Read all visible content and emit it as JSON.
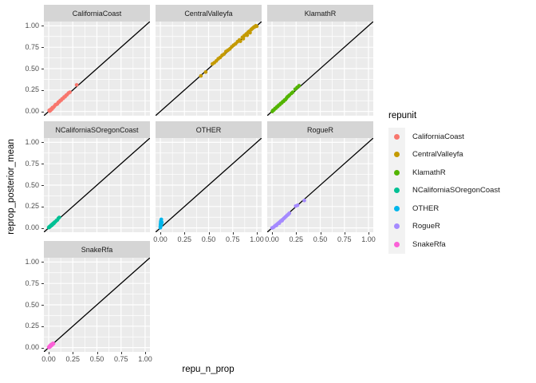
{
  "axis": {
    "x_title": "repu_n_prop",
    "y_title": "reprop_posterior_mean"
  },
  "legend": {
    "title": "repunit",
    "entries": [
      {
        "label": "CaliforniaCoast",
        "color": "#F8766D"
      },
      {
        "label": "CentralValleyfa",
        "color": "#C49A00"
      },
      {
        "label": "KlamathR",
        "color": "#53B400"
      },
      {
        "label": "NCaliforniaSOregonCoast",
        "color": "#00C094"
      },
      {
        "label": "OTHER",
        "color": "#00B6EB"
      },
      {
        "label": "RogueR",
        "color": "#A58AFF"
      },
      {
        "label": "SnakeRfa",
        "color": "#FB61D7"
      }
    ]
  },
  "theme": {
    "page_bg": "#FFFFFF",
    "panel_bg": "#EBEBEB",
    "strip_bg": "#D5D5D5",
    "grid_color": "#FFFFFF",
    "tick_text": "#4D4D4D",
    "tick_mark": "#333333",
    "ref_line": "#000000"
  },
  "chart_data": {
    "type": "scatter",
    "title": "",
    "xlabel": "repu_n_prop",
    "ylabel": "reprop_posterior_mean",
    "xlim": [
      -0.05,
      1.05
    ],
    "ylim": [
      -0.05,
      1.05
    ],
    "grid": true,
    "legend_position": "right",
    "facet_variable": "repunit",
    "reference_line": "y = x",
    "x_ticks": [
      0,
      0.25,
      0.5,
      0.75,
      1.0
    ],
    "y_ticks": [
      0,
      0.25,
      0.5,
      0.75,
      1.0
    ],
    "x_tick_labels": [
      "0.00",
      "0.25",
      "0.50",
      "0.75",
      "1.00"
    ],
    "y_tick_labels": [
      "0.00",
      "0.25",
      "0.50",
      "0.75",
      "1.00"
    ],
    "x_minor_ticks": [
      0.125,
      0.375,
      0.625,
      0.875
    ],
    "y_minor_ticks": [
      0.125,
      0.375,
      0.625,
      0.875
    ],
    "facets": [
      {
        "name": "CaliforniaCoast",
        "color": "#F8766D",
        "points": [
          [
            0.005,
            0.012
          ],
          [
            0.01,
            0.004
          ],
          [
            0.015,
            0.02
          ],
          [
            0.02,
            0.013
          ],
          [
            0.028,
            0.03
          ],
          [
            0.035,
            0.028
          ],
          [
            0.04,
            0.045
          ],
          [
            0.05,
            0.048
          ],
          [
            0.06,
            0.062
          ],
          [
            0.07,
            0.078
          ],
          [
            0.08,
            0.082
          ],
          [
            0.09,
            0.088
          ],
          [
            0.1,
            0.108
          ],
          [
            0.11,
            0.112
          ],
          [
            0.12,
            0.128
          ],
          [
            0.13,
            0.132
          ],
          [
            0.14,
            0.148
          ],
          [
            0.15,
            0.152
          ],
          [
            0.16,
            0.168
          ],
          [
            0.17,
            0.172
          ],
          [
            0.18,
            0.188
          ],
          [
            0.19,
            0.195
          ],
          [
            0.205,
            0.215
          ],
          [
            0.22,
            0.225
          ],
          [
            0.29,
            0.31
          ]
        ]
      },
      {
        "name": "CentralValleyfa",
        "color": "#C49A00",
        "points": [
          [
            0.42,
            0.415
          ],
          [
            0.47,
            0.46
          ],
          [
            0.54,
            0.555
          ],
          [
            0.56,
            0.57
          ],
          [
            0.58,
            0.59
          ],
          [
            0.6,
            0.615
          ],
          [
            0.62,
            0.63
          ],
          [
            0.64,
            0.655
          ],
          [
            0.66,
            0.67
          ],
          [
            0.68,
            0.7
          ],
          [
            0.7,
            0.715
          ],
          [
            0.72,
            0.73
          ],
          [
            0.74,
            0.755
          ],
          [
            0.76,
            0.775
          ],
          [
            0.78,
            0.79
          ],
          [
            0.8,
            0.815
          ],
          [
            0.82,
            0.835
          ],
          [
            0.83,
            0.82
          ],
          [
            0.85,
            0.865
          ],
          [
            0.86,
            0.85
          ],
          [
            0.87,
            0.885
          ],
          [
            0.89,
            0.905
          ],
          [
            0.9,
            0.89
          ],
          [
            0.91,
            0.925
          ],
          [
            0.92,
            0.935
          ],
          [
            0.93,
            0.92
          ],
          [
            0.94,
            0.955
          ],
          [
            0.95,
            0.965
          ],
          [
            0.96,
            0.975
          ],
          [
            0.97,
            0.985
          ],
          [
            0.98,
            0.99
          ],
          [
            0.99,
            1.0
          ],
          [
            1.0,
            0.995
          ]
        ]
      },
      {
        "name": "KlamathR",
        "color": "#53B400",
        "points": [
          [
            0.003,
            0.0
          ],
          [
            0.01,
            0.013
          ],
          [
            0.02,
            0.018
          ],
          [
            0.03,
            0.033
          ],
          [
            0.04,
            0.038
          ],
          [
            0.05,
            0.053
          ],
          [
            0.06,
            0.058
          ],
          [
            0.07,
            0.073
          ],
          [
            0.08,
            0.078
          ],
          [
            0.09,
            0.093
          ],
          [
            0.1,
            0.098
          ],
          [
            0.11,
            0.113
          ],
          [
            0.12,
            0.118
          ],
          [
            0.13,
            0.133
          ],
          [
            0.14,
            0.138
          ],
          [
            0.15,
            0.155
          ],
          [
            0.16,
            0.17
          ],
          [
            0.17,
            0.178
          ],
          [
            0.18,
            0.19
          ],
          [
            0.2,
            0.21
          ],
          [
            0.215,
            0.225
          ],
          [
            0.24,
            0.26
          ],
          [
            0.26,
            0.28
          ],
          [
            0.28,
            0.3
          ]
        ]
      },
      {
        "name": "NCaliforniaSOregonCoast",
        "color": "#00C094",
        "points": [
          [
            0.0,
            0.004
          ],
          [
            0.004,
            0.01
          ],
          [
            0.008,
            0.008
          ],
          [
            0.012,
            0.018
          ],
          [
            0.016,
            0.016
          ],
          [
            0.02,
            0.026
          ],
          [
            0.025,
            0.024
          ],
          [
            0.03,
            0.036
          ],
          [
            0.035,
            0.034
          ],
          [
            0.04,
            0.046
          ],
          [
            0.045,
            0.044
          ],
          [
            0.05,
            0.056
          ],
          [
            0.055,
            0.054
          ],
          [
            0.06,
            0.066
          ],
          [
            0.07,
            0.072
          ],
          [
            0.08,
            0.086
          ],
          [
            0.09,
            0.092
          ],
          [
            0.1,
            0.112
          ],
          [
            0.11,
            0.122
          ]
        ]
      },
      {
        "name": "OTHER",
        "color": "#00B6EB",
        "points": [
          [
            0.0,
            0.002
          ],
          [
            0.001,
            0.01
          ],
          [
            0.002,
            0.02
          ],
          [
            0.003,
            0.032
          ],
          [
            0.002,
            0.042
          ],
          [
            0.004,
            0.05
          ],
          [
            0.005,
            0.06
          ],
          [
            0.004,
            0.07
          ],
          [
            0.006,
            0.08
          ],
          [
            0.008,
            0.09
          ],
          [
            0.01,
            0.1
          ],
          [
            0.012,
            0.055
          ],
          [
            0.008,
            0.035
          ],
          [
            0.015,
            0.065
          ],
          [
            0.0,
            0.015
          ],
          [
            0.006,
            0.025
          ]
        ]
      },
      {
        "name": "RogueR",
        "color": "#A58AFF",
        "points": [
          [
            0.0,
            0.0
          ],
          [
            0.01,
            0.004
          ],
          [
            0.02,
            0.012
          ],
          [
            0.03,
            0.022
          ],
          [
            0.04,
            0.032
          ],
          [
            0.05,
            0.04
          ],
          [
            0.06,
            0.05
          ],
          [
            0.07,
            0.06
          ],
          [
            0.08,
            0.068
          ],
          [
            0.09,
            0.08
          ],
          [
            0.1,
            0.088
          ],
          [
            0.11,
            0.098
          ],
          [
            0.12,
            0.108
          ],
          [
            0.13,
            0.118
          ],
          [
            0.14,
            0.13
          ],
          [
            0.15,
            0.14
          ],
          [
            0.16,
            0.15
          ],
          [
            0.17,
            0.16
          ],
          [
            0.18,
            0.172
          ],
          [
            0.045,
            0.028
          ],
          [
            0.075,
            0.055
          ],
          [
            0.105,
            0.085
          ],
          [
            0.245,
            0.255
          ],
          [
            0.265,
            0.265
          ],
          [
            0.335,
            0.32
          ]
        ]
      },
      {
        "name": "SnakeRfa",
        "color": "#FB61D7",
        "points": [
          [
            0.0,
            0.002
          ],
          [
            0.004,
            0.01
          ],
          [
            0.008,
            0.004
          ],
          [
            0.012,
            0.018
          ],
          [
            0.016,
            0.012
          ],
          [
            0.02,
            0.026
          ],
          [
            0.024,
            0.02
          ],
          [
            0.028,
            0.034
          ],
          [
            0.032,
            0.028
          ],
          [
            0.036,
            0.042
          ],
          [
            0.04,
            0.036
          ],
          [
            0.045,
            0.05
          ],
          [
            0.05,
            0.046
          ],
          [
            0.015,
            0.025
          ],
          [
            0.025,
            0.035
          ]
        ]
      }
    ]
  }
}
